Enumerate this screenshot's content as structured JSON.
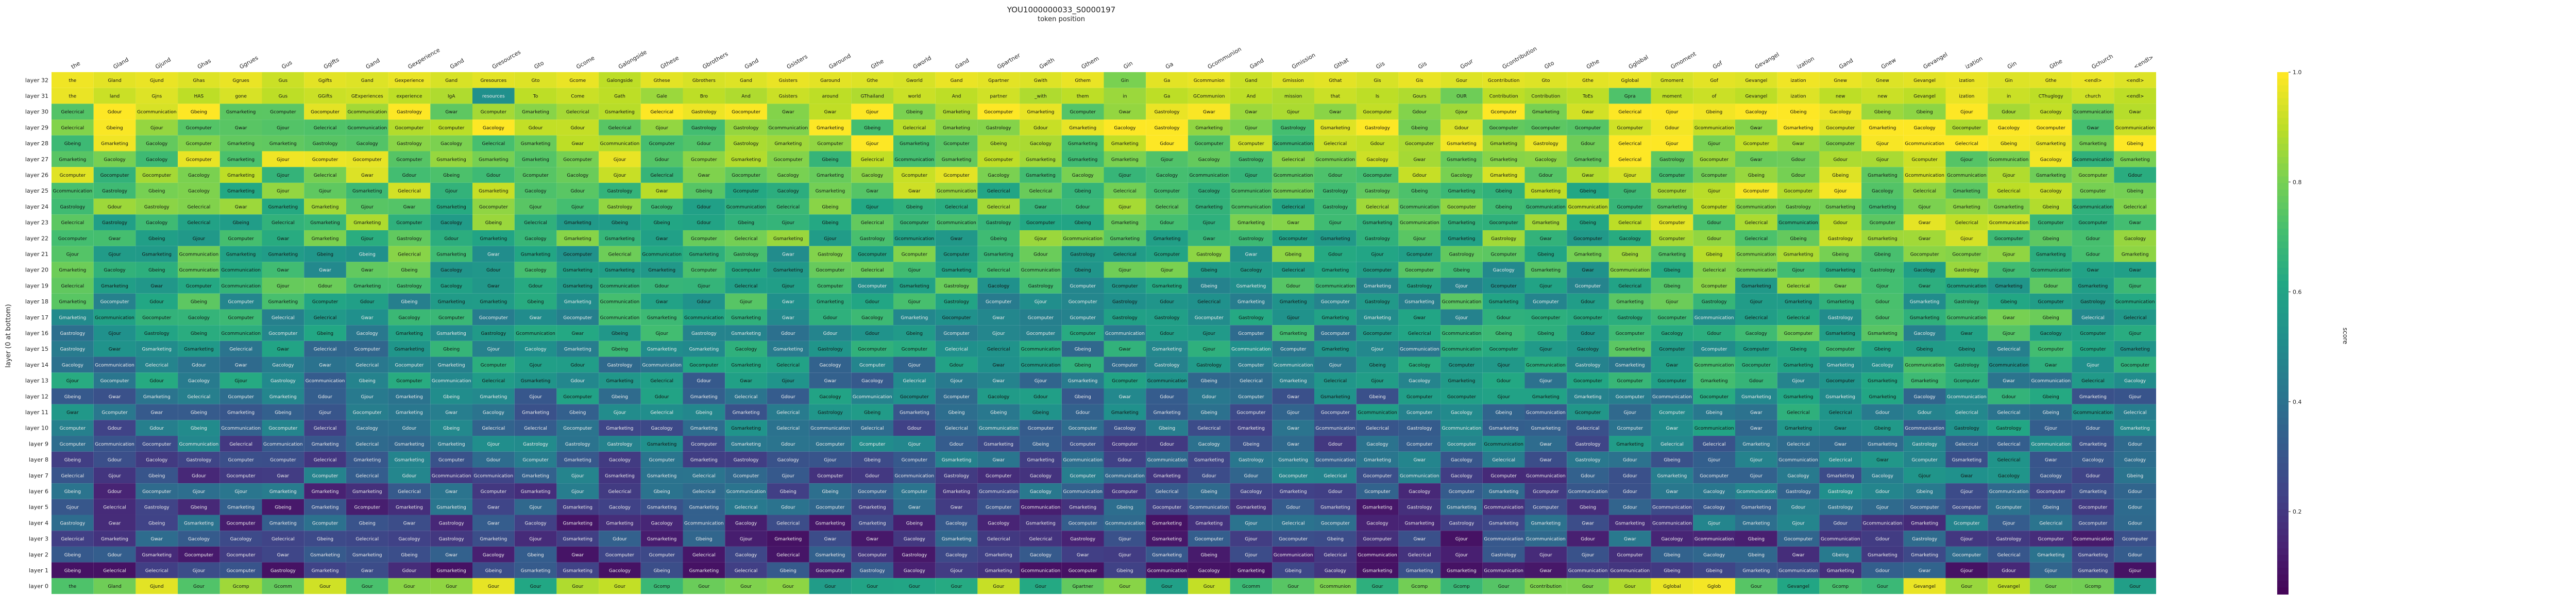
{
  "chart_data": {
    "type": "heatmap",
    "title": "YOU1000000033_S0000197",
    "xlabel": "token position",
    "ylabel": "layer (0 at bottom)",
    "colorbar_label": "score",
    "colorbar_ticks": [
      "0.2",
      "0.4",
      "0.6",
      "0.8",
      "1.0"
    ],
    "color_range": [
      0.05,
      1.0
    ],
    "colormap": "viridis",
    "x_tokens": [
      "the",
      "Gland",
      "Gjund",
      "Ghas",
      "Ggrues",
      "Gus",
      "Ggifts",
      "Gand",
      "Gexperience",
      "Gand",
      "Gresources",
      "Gto",
      "Gcome",
      "Galongside",
      "Gthese",
      "Gbrothers",
      "Gand",
      "Gsisters",
      "Garound",
      "Gthe",
      "Gworld",
      "Gand",
      "Gpartner",
      "Gwith",
      "Gthem",
      "Gin",
      "Ga",
      "Gcommunion",
      "Gand",
      "Gmission",
      "Gthat",
      "Gis",
      "Gis",
      "Gour",
      "Gcontribution",
      "Gto",
      "Gthe",
      "Gglobal",
      "Gmoment",
      "Gof",
      "Gevangel",
      "ization",
      "Gand",
      "Gnew",
      "Gevangel",
      "ization",
      "Gin",
      "Gthe",
      "Gchurch",
      "<endl>"
    ],
    "y_layers": [
      "layer 32",
      "layer 31",
      "layer 30",
      "layer 29",
      "layer 28",
      "layer 27",
      "layer 26",
      "layer 25",
      "layer 24",
      "layer 23",
      "layer 22",
      "layer 21",
      "layer 20",
      "layer 19",
      "layer 18",
      "layer 17",
      "layer 16",
      "layer 15",
      "layer 14",
      "layer 13",
      "layer 12",
      "layer 11",
      "layer 10",
      "layer 9",
      "layer 8",
      "layer 7",
      "layer 6",
      "layer 5",
      "layer 4",
      "layer 3",
      "layer 2",
      "layer 1",
      "layer 0"
    ],
    "top_rows": [
      {
        "layer": "layer 32",
        "tokens": [
          "the",
          "Gland",
          "Gjund",
          "Ghas",
          "Ggrues",
          "Gus",
          "Ggifts",
          "Gand",
          "Gexperience",
          "Gand",
          "Gresources",
          "Gto",
          "Gcome",
          "Galongside",
          "Gthese",
          "Gbrothers",
          "Gand",
          "Gsisters",
          "Garound",
          "Gthe",
          "Gworld",
          "Gand",
          "Gpartner",
          "Gwith",
          "Gthem",
          "Gin",
          "Ga",
          "Gcommunion",
          "Gand",
          "Gmission",
          "Gthat",
          "Gis",
          "Gis",
          "Gour",
          "Gcontribution",
          "Gto",
          "Gthe",
          "Gglobal",
          "Gmoment",
          "Gof",
          "Gevangel",
          "ization",
          "Gnew",
          "Gnew",
          "Gevangel",
          "ization",
          "Gin",
          "Gthe",
          "<endl>",
          "<endl>"
        ],
        "scores": [
          0.98,
          0.96,
          0.97,
          0.95,
          0.97,
          0.92,
          0.96,
          0.95,
          0.97,
          0.94,
          0.96,
          0.95,
          0.97,
          0.9,
          0.96,
          0.94,
          0.95,
          0.97,
          0.96,
          0.95,
          0.94,
          0.97,
          0.96,
          0.95,
          0.97,
          0.8,
          0.96,
          0.97,
          0.92,
          0.95,
          0.96,
          0.94,
          0.97,
          0.95,
          0.96,
          0.95,
          0.96,
          0.97,
          0.94,
          0.96,
          0.95,
          0.98,
          0.97,
          0.95,
          0.96,
          0.97,
          0.95,
          0.96,
          0.97,
          0.95
        ]
      },
      {
        "layer": "layer 31",
        "tokens": [
          "the",
          "land",
          "Gjns",
          "HAS",
          "gone",
          "Gus",
          "GGifts",
          "GExperiences",
          "experience",
          "IgA",
          "resources",
          "To",
          "Come",
          "Gath",
          "Gale",
          "Bro",
          "And",
          "Gsisters",
          "around",
          "GThailand",
          "world",
          "And",
          "partner",
          "_with",
          "them",
          "in",
          "Ga",
          "GCommunion",
          "And",
          "mission",
          "that",
          "Is",
          "Gours",
          "OUR",
          "Contribution",
          "Contribution",
          "ToEs",
          "Gpra",
          "moment",
          "of",
          "Gevangel",
          "ization",
          "new",
          "new",
          "Gevangel",
          "ization",
          "in",
          "CThuglogy",
          "church",
          "<endl>"
        ],
        "scores": [
          0.97,
          0.92,
          0.95,
          0.9,
          0.94,
          0.9,
          0.92,
          0.93,
          0.9,
          0.88,
          0.5,
          0.9,
          0.92,
          0.9,
          0.85,
          0.9,
          0.88,
          0.92,
          0.9,
          0.88,
          0.92,
          0.9,
          0.93,
          0.88,
          0.9,
          0.85,
          0.9,
          0.92,
          0.9,
          0.88,
          0.92,
          0.9,
          0.88,
          0.78,
          0.9,
          0.88,
          0.9,
          0.72,
          0.9,
          0.92,
          0.9,
          0.95,
          0.9,
          0.92,
          0.9,
          0.97,
          0.92,
          0.9,
          0.93,
          0.9
        ]
      }
    ],
    "bottom_row": {
      "layer": "layer 0",
      "tokens": [
        "the",
        "Gland",
        "Gjund",
        "Gour",
        "Gcomp",
        "Gcomm",
        "Gour",
        "Gour",
        "Gour",
        "Gour",
        "Gour",
        "Gour",
        "Gour",
        "Gour",
        "Gcomp",
        "Gour",
        "Gour",
        "Gour",
        "Gour",
        "Gour",
        "Gour",
        "Gour",
        "Gour",
        "Gour",
        "Gpartner",
        "Gour",
        "Gour",
        "Gour",
        "Gcomm",
        "Gour",
        "Gcommunion",
        "Gour",
        "Gcomp",
        "Gcomp",
        "Gour",
        "Gcontribution",
        "Gour",
        "Gour",
        "Gglobal",
        "Gglob",
        "Gour",
        "Gevangel",
        "Gcomp",
        "Gour",
        "Gevangel",
        "Gour",
        "Gevangel",
        "Gour",
        "Gcomp",
        "Gour"
      ]
    }
  }
}
